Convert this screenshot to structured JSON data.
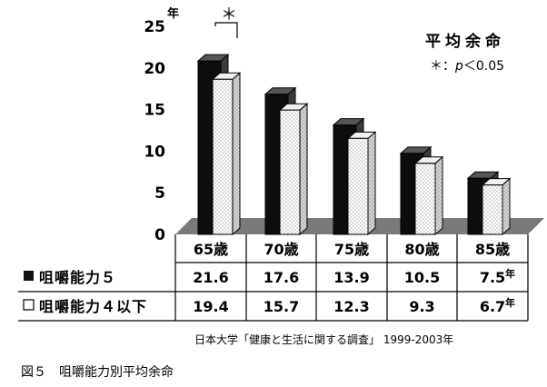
{
  "chart_data": {
    "type": "bar",
    "title": "平均余命",
    "y_unit": "年",
    "ylim": [
      0,
      25
    ],
    "yticks": [
      0,
      5,
      10,
      15,
      20,
      25
    ],
    "categories": [
      "65歳",
      "70歳",
      "75歳",
      "80歳",
      "85歳"
    ],
    "series": [
      {
        "name": "咀嚼能力５",
        "values": [
          21.6,
          17.6,
          13.9,
          10.5,
          7.5
        ],
        "value_labels": [
          "21.6",
          "17.6",
          "13.9",
          "10.5",
          "7.5"
        ],
        "color": "#111111"
      },
      {
        "name": "咀嚼能力４以下",
        "values": [
          19.4,
          15.7,
          12.3,
          9.3,
          6.7
        ],
        "value_labels": [
          "19.4",
          "15.7",
          "12.3",
          "9.3",
          "6.7"
        ],
        "color": "#ffffff"
      }
    ],
    "significance": {
      "marker": "＊",
      "category": "65歳",
      "note_star": "＊：",
      "note_p": "p",
      "note_cmp": "＜0.05"
    },
    "grid": false,
    "data_table": true
  },
  "source_note": "日本大学「健康と生活に関する調査」 1999-2003年",
  "caption": "図５　咀嚼能力別平均余命"
}
